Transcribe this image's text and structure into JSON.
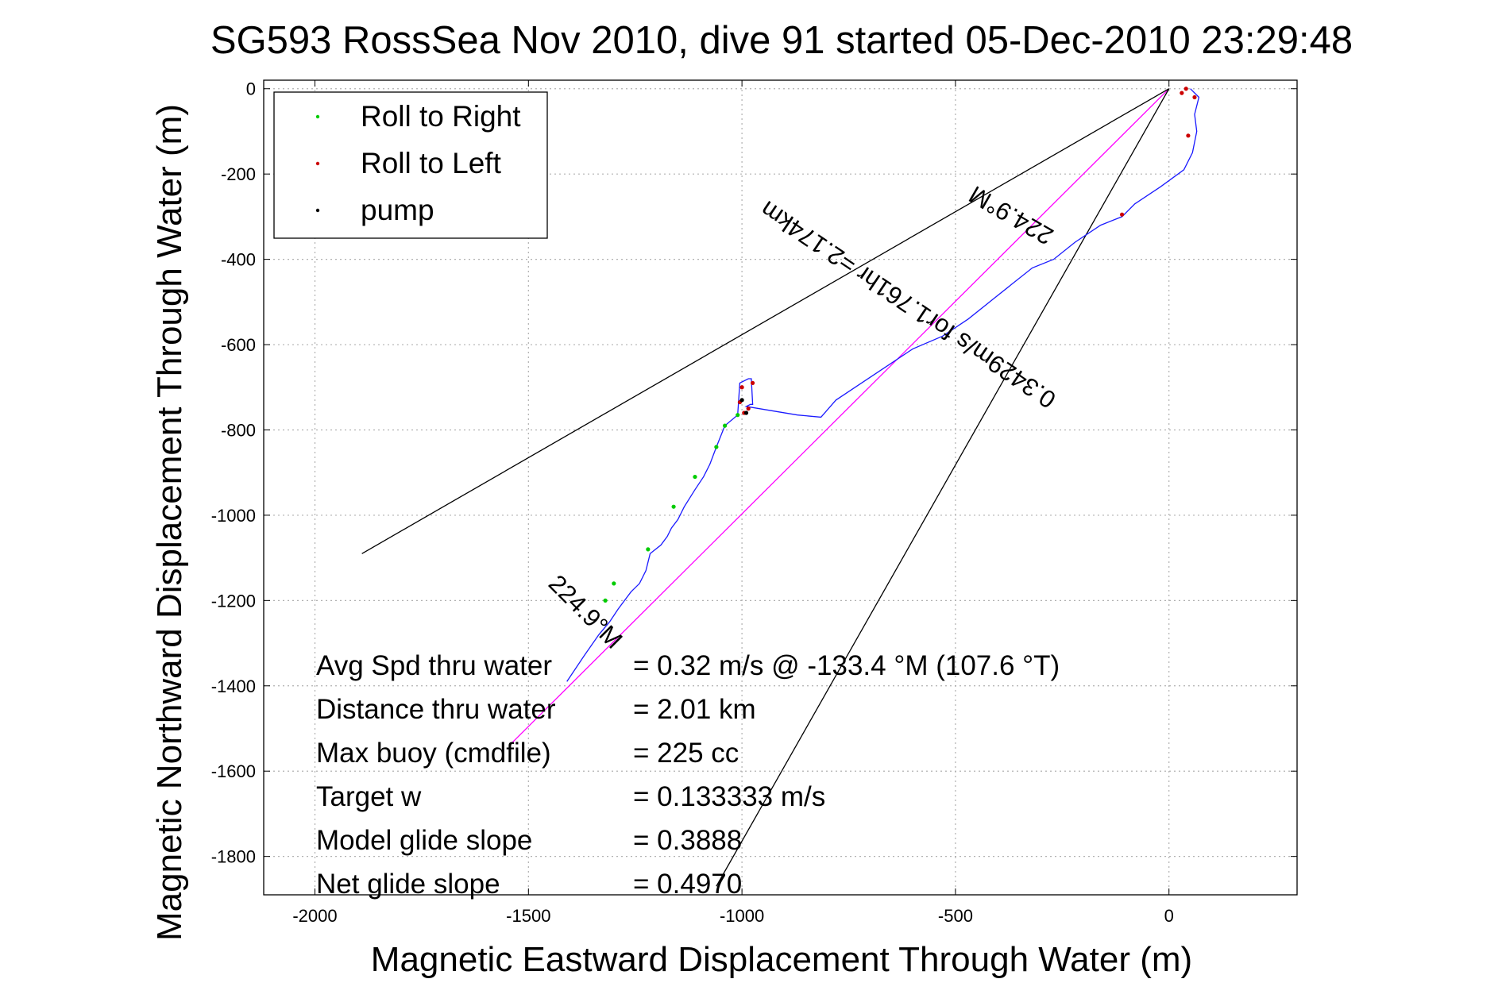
{
  "chart_data": {
    "type": "line",
    "title": "SG593 RossSea Nov 2010, dive 91 started 05-Dec-2010 23:29:48",
    "xlabel": "Magnetic Eastward Displacement Through Water (m)",
    "ylabel": "Magnetic Northward Displacement Through Water (m)",
    "xlim": [
      -2120,
      300
    ],
    "ylim": [
      -1890,
      20
    ],
    "xticks": [
      -2000,
      -1500,
      -1000,
      -500,
      0
    ],
    "yticks": [
      0,
      -200,
      -400,
      -600,
      -800,
      -1000,
      -1200,
      -1400,
      -1600,
      -1800
    ],
    "grid": true,
    "legend_placement": "top-left",
    "legend": [
      {
        "label": "Roll to Right",
        "color": "#00cc00"
      },
      {
        "label": "Roll to Left",
        "color": "#cc0000"
      },
      {
        "label": "pump",
        "color": "#000000"
      }
    ],
    "track": {
      "color": "#1a1aff",
      "x": [
        50,
        70,
        60,
        65,
        55,
        35,
        -20,
        -80,
        -110,
        -160,
        -220,
        -270,
        -320,
        -370,
        -420,
        -470,
        -530,
        -600,
        -660,
        -720,
        -780,
        -815,
        -870,
        -930,
        -990,
        -980,
        -975,
        -978,
        -985,
        -1005,
        -1010,
        -1040,
        -1060,
        -1075,
        -1090,
        -1110,
        -1135,
        -1150,
        -1165,
        -1175,
        -1190,
        -1215,
        -1225,
        -1240,
        -1260,
        -1290,
        -1310,
        -1335,
        -1370,
        -1410
      ],
      "y": [
        0,
        -20,
        -60,
        -100,
        -150,
        -190,
        -230,
        -270,
        -300,
        -320,
        -360,
        -400,
        -420,
        -460,
        -500,
        -540,
        -580,
        -610,
        -650,
        -690,
        -730,
        -770,
        -765,
        -755,
        -745,
        -740,
        -740,
        -680,
        -680,
        -690,
        -765,
        -790,
        -840,
        -880,
        -910,
        -940,
        -980,
        -1010,
        -1030,
        -1050,
        -1070,
        -1090,
        -1130,
        -1160,
        -1180,
        -1220,
        -1250,
        -1280,
        -1330,
        -1390
      ]
    },
    "reference_lines": [
      {
        "name": "magenta",
        "color": "#ff00ff",
        "x": [
          0,
          -1540
        ],
        "y": [
          0,
          -1535
        ]
      },
      {
        "name": "black-upper",
        "color": "#000000",
        "x": [
          0,
          -1890
        ],
        "y": [
          0,
          -1090
        ]
      },
      {
        "name": "black-lower",
        "color": "#000000",
        "x": [
          0,
          -1060
        ],
        "y": [
          0,
          -1870
        ]
      }
    ],
    "roll_left_points": {
      "x": [
        40,
        60,
        30,
        45,
        -110,
        -1000,
        -975,
        -985,
        -995,
        -1005
      ],
      "y": [
        0,
        -20,
        -10,
        -110,
        -295,
        -700,
        -690,
        -750,
        -760,
        -735
      ]
    },
    "roll_right_points": {
      "x": [
        -1010,
        -1040,
        -1060,
        -1110,
        -1160,
        -1220,
        -1300,
        -1320
      ],
      "y": [
        -765,
        -790,
        -840,
        -910,
        -980,
        -1080,
        -1160,
        -1200
      ]
    },
    "pump_points": {
      "x": [
        -1000,
        -990
      ],
      "y": [
        -730,
        -760
      ]
    },
    "annotations": [
      {
        "text": "224.9°M",
        "x": -1380,
        "y": -1240,
        "rotation": 45
      },
      {
        "text": "224.9°M",
        "x": -360,
        "y": -280,
        "rotation": 210
      },
      {
        "text": "0.3429m/s for1.761hr =2.174km",
        "x": -600,
        "y": -490,
        "rotation": 214
      }
    ],
    "stats": [
      {
        "label": "Avg Spd thru water",
        "value": "=  0.32 m/s @  -133.4 °M (107.6 °T)"
      },
      {
        "label": "Distance thru water",
        "value": "=  2.01 km"
      },
      {
        "label": "Max buoy (cmdfile)",
        "value": "= 225 cc"
      },
      {
        "label": "Target w",
        "value": "= 0.133333 m/s"
      },
      {
        "label": "Model glide slope",
        "value": "= 0.3888"
      },
      {
        "label": "Net glide slope",
        "value": "= 0.4970"
      }
    ]
  }
}
